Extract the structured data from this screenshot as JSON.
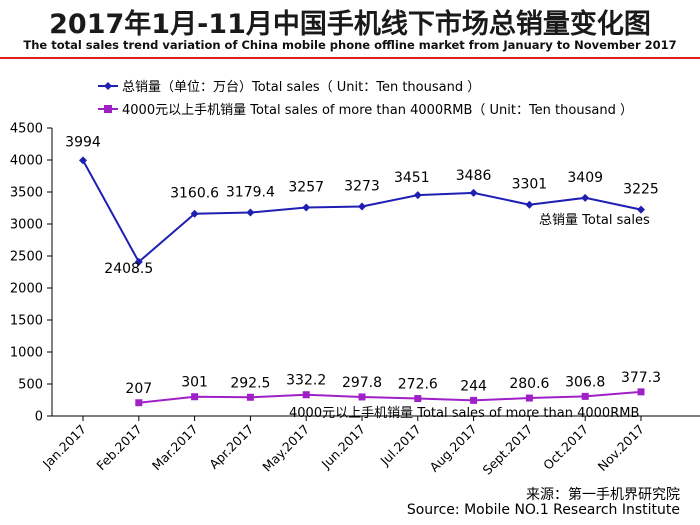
{
  "header": {
    "title": "2017年1月-11月中国手机线下市场总销量变化图",
    "subtitle": "The total sales trend variation of China mobile phone offline market from January to November 2017"
  },
  "source": {
    "line1": "来源：第一手机界研究院",
    "line2": "Source: Mobile NO.1 Research Institute"
  },
  "colors": {
    "total": "#1f1fb4",
    "premium": "#a020c8",
    "accent_rule": "#e02020"
  },
  "chart_data": {
    "type": "line",
    "categories": [
      "Jan.2017",
      "Feb.2017",
      "Mar.2017",
      "Apr.2017",
      "May.2017",
      "Jun.2017",
      "Jul.2017",
      "Aug.2017",
      "Sept.2017",
      "Oct.2017",
      "Nov.2017"
    ],
    "ylim": [
      0,
      4500
    ],
    "yticks": [
      0,
      500,
      1000,
      1500,
      2000,
      2500,
      3000,
      3500,
      4000,
      4500
    ],
    "grid": false,
    "legend_position": "top-left",
    "series": [
      {
        "name": "总销量（单位：万台）Total sales（ Unit：Ten thousand ）",
        "marker": "diamond",
        "values": [
          3994,
          2408.5,
          3160.6,
          3179.4,
          3257,
          3273,
          3451,
          3486,
          3301,
          3409,
          3225
        ],
        "labels": [
          "3994",
          "2408.5",
          "3160.6",
          "3179.4",
          "3257",
          "3273",
          "3451",
          "3486",
          "3301",
          "3409",
          "3225"
        ]
      },
      {
        "name": "4000元以上手机销量 Total sales of more than 4000RMB（ Unit：Ten thousand ）",
        "marker": "square",
        "values": [
          null,
          207,
          301,
          292.5,
          332.2,
          297.8,
          272.6,
          244,
          280.6,
          306.8,
          377.3
        ],
        "labels": [
          "",
          "207",
          "301",
          "292.5",
          "332.2",
          "297.8",
          "272.6",
          "244",
          "280.6",
          "306.8",
          "377.3"
        ]
      }
    ],
    "annotations": {
      "total": "总销量 Total sales",
      "premium": "4000元以上手机销量 Total sales of more than 4000RMB"
    }
  }
}
